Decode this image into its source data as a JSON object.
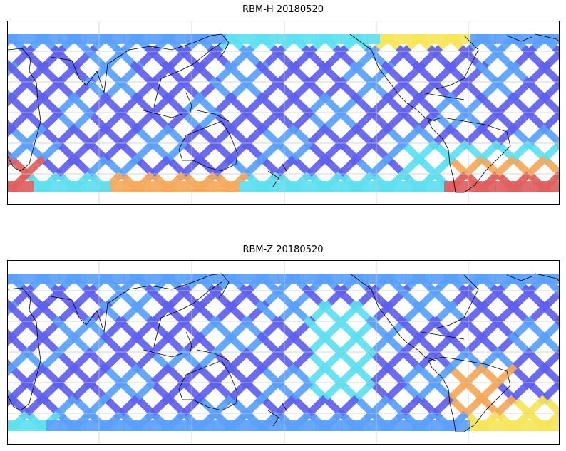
{
  "panels": [
    {
      "title": "RBM-H 20180520",
      "colors": {
        "track_low": "#6060ee",
        "track_mid": "#5aa0ff",
        "track_cyan": "#5ee0f0",
        "track_yellow": "#f6e65a",
        "track_orange": "#f5a95a",
        "track_high": "#e06060"
      }
    },
    {
      "title": "RBM-Z 20180520",
      "colors": {
        "track_low": "#6060ee",
        "track_mid": "#5aa0ff",
        "track_cyan": "#5ee0f0",
        "track_yellow": "#f6e65a",
        "track_orange": "#f5a95a"
      }
    }
  ],
  "map": {
    "coastline_color": "#000000",
    "grid_color": "#c8c8c8",
    "grid_lines": true
  }
}
